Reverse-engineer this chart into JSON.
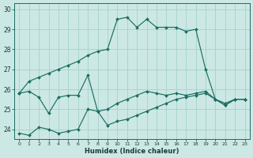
{
  "xlabel": "Humidex (Indice chaleur)",
  "x_ticks": [
    0,
    1,
    2,
    3,
    4,
    5,
    6,
    7,
    8,
    9,
    10,
    11,
    12,
    13,
    14,
    15,
    16,
    17,
    18,
    19,
    20,
    21,
    22,
    23
  ],
  "xlim": [
    -0.5,
    23.5
  ],
  "ylim": [
    23.5,
    30.3
  ],
  "y_ticks": [
    24,
    25,
    26,
    27,
    28,
    29,
    30
  ],
  "background_color": "#cce8e4",
  "grid_color": "#aad4ce",
  "line_color": "#1a6e62",
  "line1": {
    "x": [
      0,
      1,
      2,
      3,
      4,
      5,
      6,
      7,
      8,
      9,
      10,
      11,
      12,
      13,
      14,
      15,
      16,
      17,
      18,
      19,
      20,
      21,
      22,
      23
    ],
    "y": [
      25.8,
      26.4,
      26.6,
      26.8,
      27.0,
      27.2,
      27.4,
      27.7,
      27.9,
      28.0,
      29.5,
      29.6,
      29.1,
      29.5,
      29.1,
      29.1,
      29.1,
      28.9,
      29.0,
      27.0,
      25.5,
      25.3,
      25.5,
      25.5
    ]
  },
  "line2": {
    "x": [
      0,
      1,
      2,
      3,
      4,
      5,
      6,
      7,
      8,
      9,
      10,
      11,
      12,
      13,
      14,
      15,
      16,
      17,
      18,
      19,
      20,
      21,
      22,
      23
    ],
    "y": [
      25.8,
      25.9,
      25.6,
      24.8,
      25.6,
      25.7,
      25.7,
      26.7,
      24.9,
      25.0,
      25.3,
      25.5,
      25.7,
      25.9,
      25.8,
      25.7,
      25.8,
      25.7,
      25.8,
      25.9,
      25.5,
      25.2,
      25.5,
      25.5
    ]
  },
  "line3": {
    "x": [
      0,
      1,
      2,
      3,
      4,
      5,
      6,
      7,
      8,
      9,
      10,
      11,
      12,
      13,
      14,
      15,
      16,
      17,
      18,
      19,
      20,
      21,
      22,
      23
    ],
    "y": [
      23.8,
      23.7,
      24.1,
      24.0,
      23.8,
      23.9,
      24.0,
      25.0,
      24.9,
      24.2,
      24.4,
      24.5,
      24.7,
      24.9,
      25.1,
      25.3,
      25.5,
      25.6,
      25.7,
      25.8,
      25.5,
      25.2,
      25.5,
      25.5
    ]
  }
}
